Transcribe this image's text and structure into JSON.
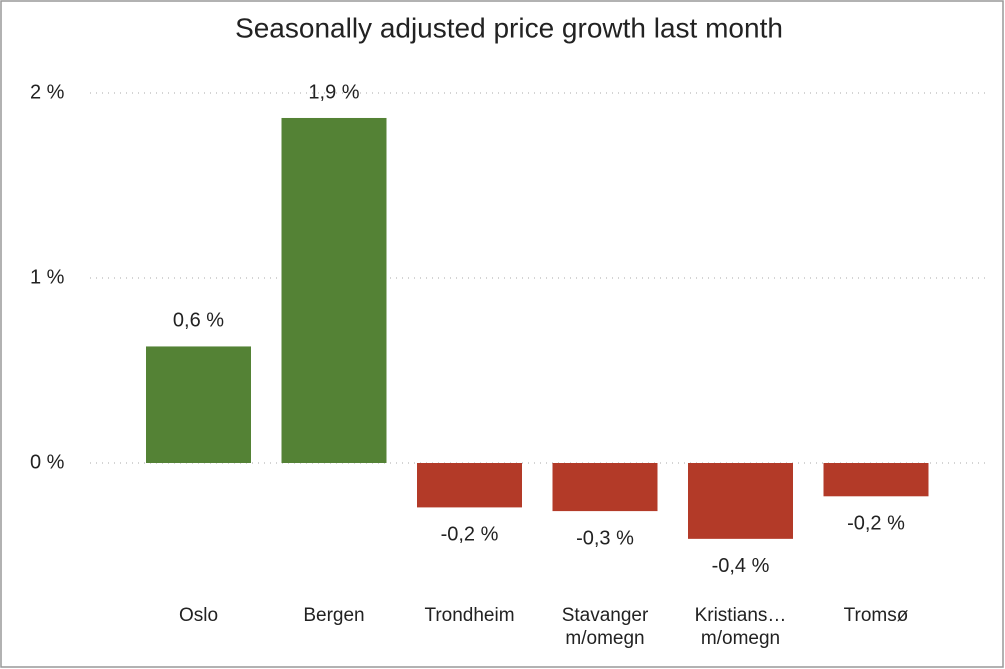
{
  "chart_data": {
    "type": "bar",
    "title": "Seasonally adjusted price growth last month",
    "categories": [
      "Oslo",
      "Bergen",
      "Trondheim",
      "Stavanger m/omegn",
      "Kristians… m/omegn",
      "Tromsø"
    ],
    "values": [
      0.63,
      1.865,
      -0.24,
      -0.26,
      -0.41,
      -0.18
    ],
    "value_labels": [
      "0,6 %",
      "1,9 %",
      "-0,2 %",
      "-0,3 %",
      "-0,4 %",
      "-0,2 %"
    ],
    "colors": [
      "#548235",
      "#548235",
      "#b33a28",
      "#b33a28",
      "#b33a28",
      "#b33a28"
    ],
    "ylim": [
      -0.6,
      2.2
    ],
    "yticks": [
      {
        "value": 0,
        "label": "0 %"
      },
      {
        "value": 1,
        "label": "1 %"
      },
      {
        "value": 2,
        "label": "2 %"
      }
    ],
    "grid": true
  }
}
